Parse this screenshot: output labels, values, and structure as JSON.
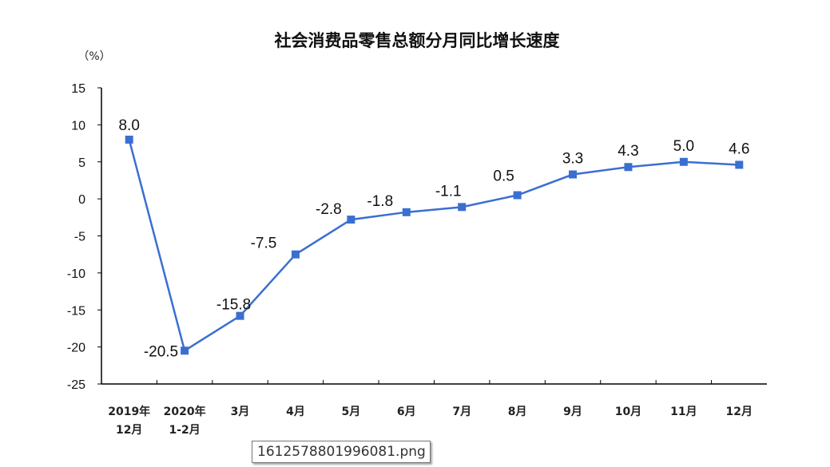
{
  "chart_data": {
    "type": "line",
    "title": "社会消费品零售总额分月同比增长速度",
    "ylabel": "（%）",
    "xlabel": "",
    "categories": [
      [
        "2019年",
        "12月"
      ],
      [
        "2020年",
        "1-2月"
      ],
      [
        "3月"
      ],
      [
        "4月"
      ],
      [
        "5月"
      ],
      [
        "6月"
      ],
      [
        "7月"
      ],
      [
        "8月"
      ],
      [
        "9月"
      ],
      [
        "10月"
      ],
      [
        "11月"
      ],
      [
        "12月"
      ]
    ],
    "series": [
      {
        "values": [
          8.0,
          -20.5,
          -15.8,
          -7.5,
          -2.8,
          -1.8,
          -1.1,
          0.5,
          3.3,
          4.3,
          5.0,
          4.6
        ]
      }
    ],
    "data_labels": [
      "8.0",
      "-20.5",
      "-15.8",
      "-7.5",
      "-2.8",
      "-1.8",
      "-1.1",
      "0.5",
      "3.3",
      "4.3",
      "5.0",
      "4.6"
    ],
    "ylim": [
      -25,
      15
    ],
    "yticks": [
      15,
      10,
      5,
      0,
      -5,
      -10,
      -15,
      -20,
      -25
    ],
    "grid": false,
    "legend": "none",
    "line_color": "#3a6fd0"
  },
  "tooltip": {
    "text": "1612578801996081.png"
  }
}
